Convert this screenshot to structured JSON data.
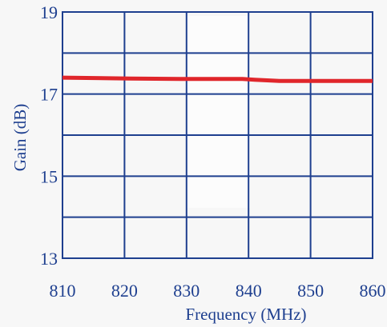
{
  "chart_data": {
    "type": "line",
    "title": "",
    "xlabel": "Frequency (MHz)",
    "ylabel": "Gain (dB)",
    "xlim": [
      810,
      860
    ],
    "ylim": [
      13,
      19
    ],
    "x_ticks": [
      "810",
      "820",
      "830",
      "840",
      "850",
      "860"
    ],
    "y_ticks": [
      "13",
      "15",
      "17",
      "19"
    ],
    "x_gridlines": [
      810,
      820,
      830,
      840,
      850,
      860
    ],
    "y_gridlines": [
      13,
      14,
      15,
      16,
      17,
      18,
      19
    ],
    "grid": true,
    "series": [
      {
        "color": "#e0262b",
        "x": [
          810,
          821,
          829,
          839,
          841,
          845,
          850,
          860
        ],
        "y": [
          17.4,
          17.38,
          17.37,
          17.37,
          17.35,
          17.32,
          17.32,
          17.32
        ]
      }
    ],
    "colors": {
      "axis": "#1e3f8f",
      "grid": "#1e3f8f",
      "background": "#f7f7f7"
    }
  }
}
